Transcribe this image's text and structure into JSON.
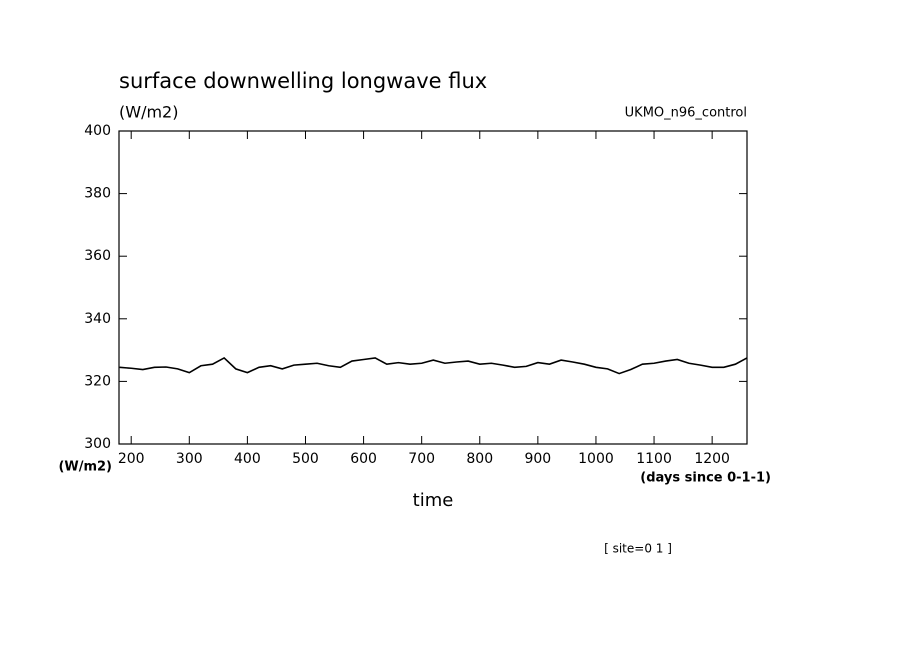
{
  "chart_data": {
    "type": "line",
    "title": "surface downwelling longwave flux",
    "units": "(W/m2)",
    "dataset": "UKMO_n96_control",
    "y_axis_label": "(W/m2)",
    "x_axis_units": "(days since 0-1-1)",
    "x_axis_label": "time",
    "footnote": "[ site=0 1 ]",
    "xlim": [
      179,
      1260
    ],
    "ylim": [
      300,
      400
    ],
    "xticks": [
      200,
      300,
      400,
      500,
      600,
      700,
      800,
      900,
      1000,
      1100,
      1200
    ],
    "yticks": [
      300,
      320,
      340,
      360,
      380,
      400
    ],
    "series": [
      {
        "color": "#000000",
        "x": [
          180,
          200,
          220,
          240,
          260,
          280,
          300,
          320,
          340,
          360,
          380,
          400,
          420,
          440,
          460,
          480,
          500,
          520,
          540,
          560,
          580,
          600,
          620,
          640,
          660,
          680,
          700,
          720,
          740,
          760,
          780,
          800,
          820,
          840,
          860,
          880,
          900,
          920,
          940,
          960,
          980,
          1000,
          1020,
          1040,
          1060,
          1080,
          1100,
          1120,
          1140,
          1160,
          1180,
          1200,
          1220,
          1240,
          1260
        ],
        "values": [
          324.5,
          324.2,
          323.8,
          324.5,
          324.6,
          324.0,
          322.8,
          325.0,
          325.5,
          327.5,
          324.0,
          322.8,
          324.5,
          325.0,
          324.0,
          325.2,
          325.5,
          325.8,
          325.0,
          324.5,
          326.5,
          327.0,
          327.5,
          325.5,
          326.0,
          325.5,
          325.8,
          326.8,
          325.8,
          326.2,
          326.5,
          325.5,
          325.8,
          325.2,
          324.5,
          324.8,
          326.0,
          325.5,
          326.8,
          326.2,
          325.5,
          324.5,
          324.0,
          322.5,
          323.8,
          325.5,
          325.8,
          326.5,
          327.0,
          325.8,
          325.2,
          324.5,
          324.5,
          325.5,
          327.5
        ]
      }
    ]
  }
}
